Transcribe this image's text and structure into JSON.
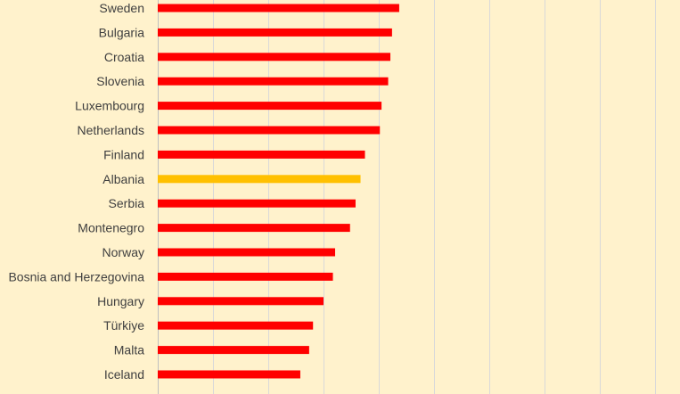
{
  "chart_data": {
    "type": "bar",
    "orientation": "horizontal",
    "categories": [
      "Sweden",
      "Bulgaria",
      "Croatia",
      "Slovenia",
      "Luxembourg",
      "Netherlands",
      "Finland",
      "Albania",
      "Serbia",
      "Montenegro",
      "Norway",
      "Bosnia and Herzegovina",
      "Hungary",
      "Türkiye",
      "Malta",
      "Iceland"
    ],
    "values": [
      4.37,
      4.24,
      4.21,
      4.17,
      4.05,
      4.02,
      3.75,
      3.67,
      3.58,
      3.48,
      3.21,
      3.17,
      3.0,
      2.81,
      2.74,
      2.58
    ],
    "highlight": [
      "Albania"
    ],
    "xlim": [
      0,
      9.5
    ],
    "x_grid_step": 1,
    "grid": true,
    "colors": {
      "default_bar": "#FF0000",
      "highlight_bar": "#FFC000",
      "background": "#FFF2CC",
      "gridline": "#D9D9D9",
      "label_text": "#404040"
    }
  }
}
